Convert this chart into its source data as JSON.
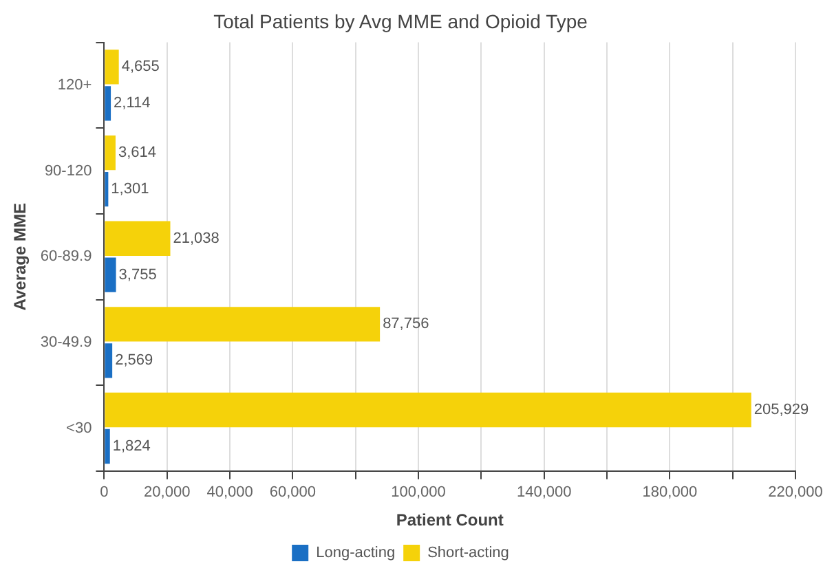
{
  "chart_data": {
    "type": "bar",
    "orientation": "horizontal",
    "title": "Total Patients by Avg MME and Opioid Type",
    "xlabel": "Patient Count",
    "ylabel": "Average MME",
    "categories": [
      "120+",
      "90-120",
      "60-89.9",
      "30-49.9",
      "<30"
    ],
    "series": [
      {
        "name": "Long-acting",
        "color": "#1a6fc4",
        "values": [
          2114,
          1301,
          3755,
          2569,
          1824
        ],
        "value_labels": [
          "2,114",
          "1,301",
          "3,755",
          "2,569",
          "1,824"
        ]
      },
      {
        "name": "Short-acting",
        "color": "#f5d20a",
        "values": [
          4655,
          3614,
          21038,
          87756,
          205929
        ],
        "value_labels": [
          "4,655",
          "3,614",
          "21,038",
          "87,756",
          "205,929"
        ]
      }
    ],
    "xlim": [
      0,
      220000
    ],
    "xticks": [
      {
        "value": 0,
        "label": "0"
      },
      {
        "value": 20000,
        "label": "20,000"
      },
      {
        "value": 40000,
        "label": "40,000"
      },
      {
        "value": 60000,
        "label": "60,000"
      },
      {
        "value": 80000,
        "label": null
      },
      {
        "value": 100000,
        "label": "100,000"
      },
      {
        "value": 120000,
        "label": null
      },
      {
        "value": 140000,
        "label": "140,000"
      },
      {
        "value": 160000,
        "label": null
      },
      {
        "value": 180000,
        "label": "180,000"
      },
      {
        "value": 200000,
        "label": null
      },
      {
        "value": 220000,
        "label": "220,000"
      }
    ],
    "grid": "x",
    "legend": "bottom"
  }
}
